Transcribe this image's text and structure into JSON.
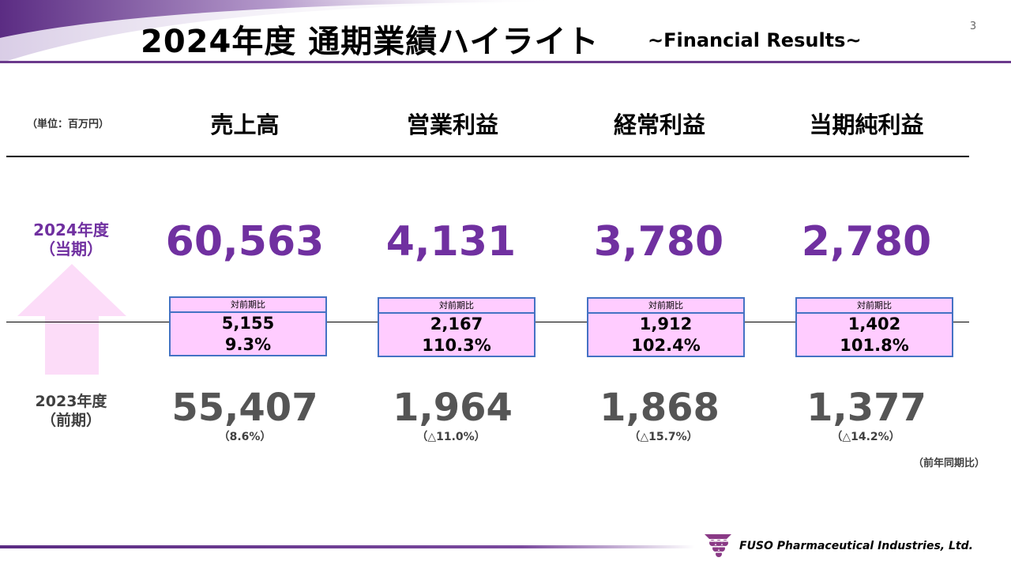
{
  "header": {
    "title": "2024年度 通期業績ハイライト",
    "subtitle": "~Financial Results~",
    "page_number": "3",
    "accent_color": "#7030a0"
  },
  "unit_label": "（単位：百万円）",
  "columns": [
    {
      "heading": "売上高",
      "current": "60,563",
      "compare_label": "対前期比",
      "diff": "5,155",
      "rate": "9.3%",
      "previous": "55,407",
      "prev_rate": "（8.6%）"
    },
    {
      "heading": "営業利益",
      "current": "4,131",
      "compare_label": "対前期比",
      "diff": "2,167",
      "rate": "110.3%",
      "previous": "1,964",
      "prev_rate": "（△11.0%）"
    },
    {
      "heading": "経常利益",
      "current": "3,780",
      "compare_label": "対前期比",
      "diff": "1,912",
      "rate": "102.4%",
      "previous": "1,868",
      "prev_rate": "（△15.7%）"
    },
    {
      "heading": "当期純利益",
      "current": "2,780",
      "compare_label": "対前期比",
      "diff": "1,402",
      "rate": "101.8%",
      "previous": "1,377",
      "prev_rate": "（△14.2%）"
    }
  ],
  "row_labels": {
    "current_year": "2024年度",
    "current_period": "（当期）",
    "previous_year": "2023年度",
    "previous_period": "（前期）"
  },
  "yoy_label": "（前年同期比）",
  "footer": {
    "company": "FUSO Pharmaceutical Industries, Ltd."
  }
}
